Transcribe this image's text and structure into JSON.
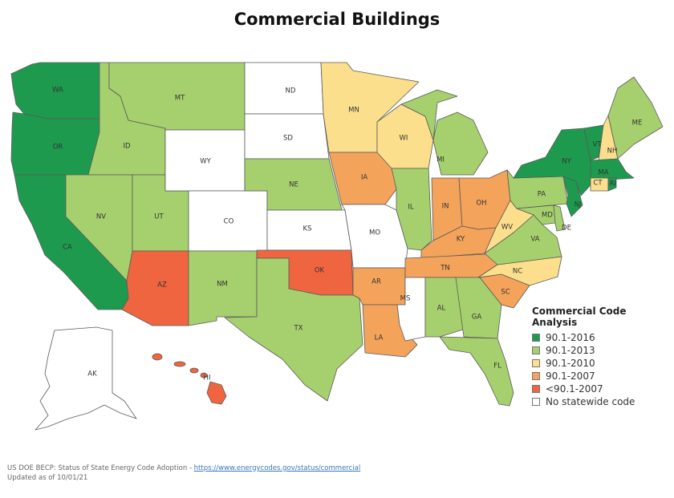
{
  "title": "Commercial Buildings",
  "colors": {
    "90.1-2016": "#1e9a4f",
    "90.1-2013": "#a6d06d",
    "90.1-2010": "#fbdf8d",
    "90.1-2007": "#f4a35b",
    "<90.1-2007": "#ee6540",
    "none": "#ffffff"
  },
  "legend": {
    "title": "Commercial Code Analysis",
    "items": [
      {
        "key": "90.1-2016",
        "label": "90.1-2016"
      },
      {
        "key": "90.1-2013",
        "label": "90.1-2013"
      },
      {
        "key": "90.1-2010",
        "label": "90.1-2010"
      },
      {
        "key": "90.1-2007",
        "label": "90.1-2007"
      },
      {
        "key": "<90.1-2007",
        "label": "<90.1-2007"
      },
      {
        "key": "none",
        "label": "No statewide code"
      }
    ]
  },
  "states": {
    "WA": "90.1-2016",
    "OR": "90.1-2016",
    "CA": "90.1-2016",
    "NY": "90.1-2016",
    "VT": "90.1-2016",
    "MA": "90.1-2016",
    "NJ": "90.1-2016",
    "RI": "90.1-2016",
    "MT": "90.1-2013",
    "ID": "90.1-2013",
    "NV": "90.1-2013",
    "UT": "90.1-2013",
    "NM": "90.1-2013",
    "TX": "90.1-2013",
    "NE": "90.1-2013",
    "IL": "90.1-2013",
    "MI": "90.1-2013",
    "ME": "90.1-2013",
    "PA": "90.1-2013",
    "MD": "90.1-2013",
    "DE": "90.1-2013",
    "VA": "90.1-2013",
    "AL": "90.1-2013",
    "GA": "90.1-2013",
    "FL": "90.1-2013",
    "MN": "90.1-2010",
    "WI": "90.1-2010",
    "NH": "90.1-2010",
    "CT": "90.1-2010",
    "WV": "90.1-2010",
    "NC": "90.1-2010",
    "IA": "90.1-2007",
    "IN": "90.1-2007",
    "OH": "90.1-2007",
    "KY": "90.1-2007",
    "TN": "90.1-2007",
    "AR": "90.1-2007",
    "LA": "90.1-2007",
    "SC": "90.1-2007",
    "AZ": "<90.1-2007",
    "OK": "<90.1-2007",
    "HI": "<90.1-2007",
    "ND": "none",
    "SD": "none",
    "WY": "none",
    "CO": "none",
    "KS": "none",
    "MO": "none",
    "MS": "none",
    "AK": "none"
  },
  "footer": {
    "source_prefix": "US DOE BECP: Status of State Energy Code Adoption - ",
    "source_link": "https://www.energycodes.gov/status/commercial",
    "updated": "Updated as of 10/01/21"
  }
}
